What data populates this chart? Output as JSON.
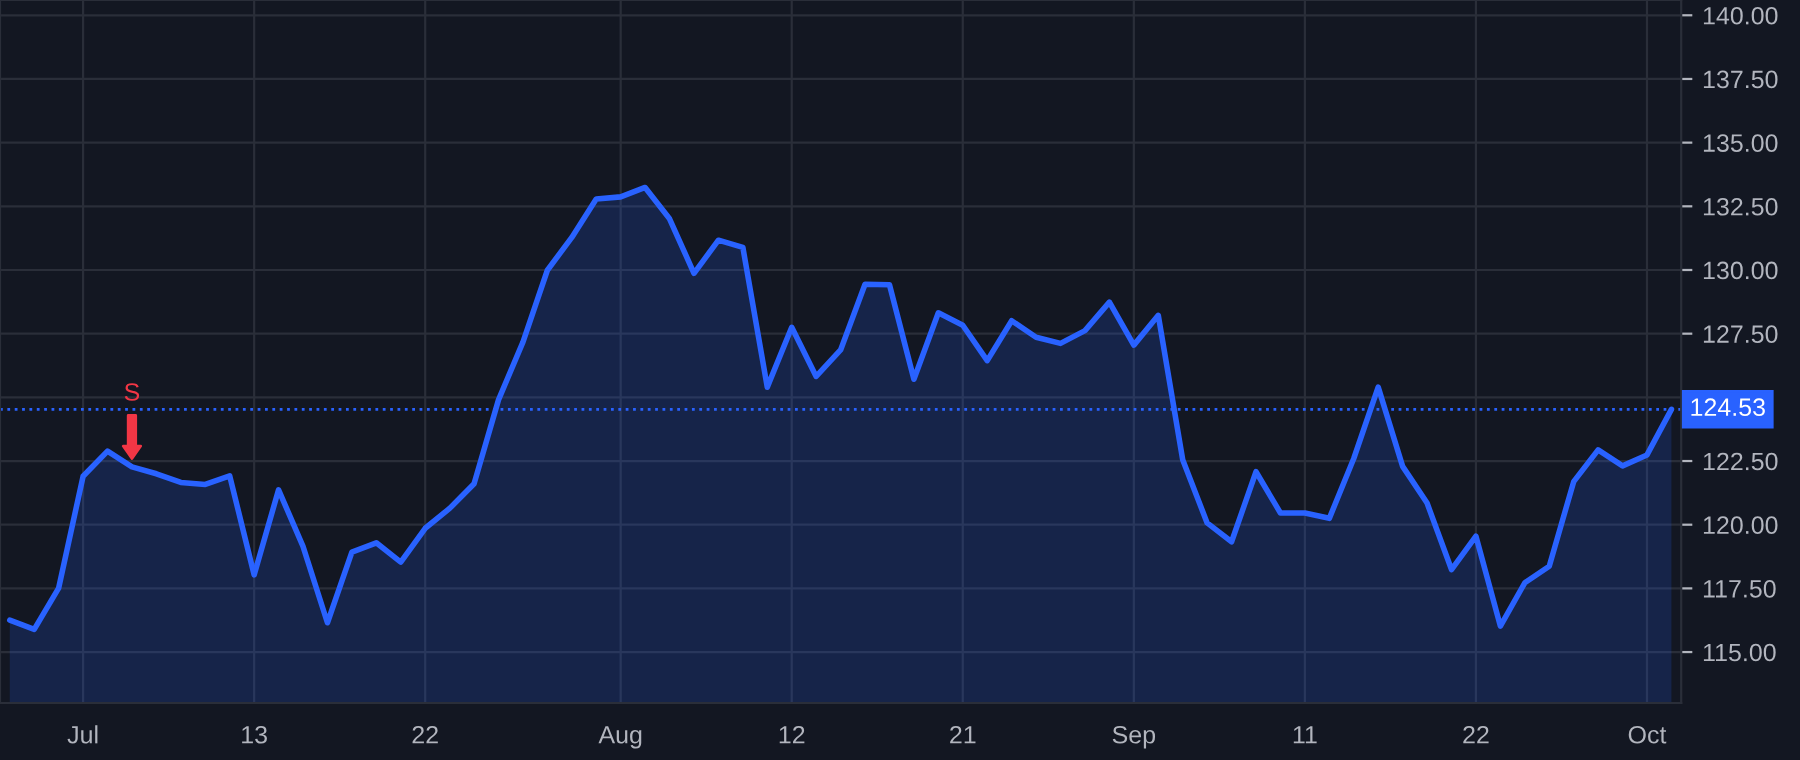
{
  "chart_data": {
    "type": "area",
    "categories": [
      null,
      null,
      null,
      "Jul",
      null,
      null,
      null,
      null,
      null,
      null,
      "13",
      null,
      null,
      null,
      null,
      null,
      null,
      "22",
      null,
      null,
      null,
      null,
      null,
      null,
      null,
      "Aug",
      null,
      null,
      null,
      null,
      null,
      null,
      "12",
      null,
      null,
      null,
      null,
      null,
      null,
      "21",
      null,
      null,
      null,
      null,
      null,
      null,
      "Sep",
      null,
      null,
      null,
      null,
      null,
      null,
      "11",
      null,
      null,
      null,
      null,
      null,
      null,
      "22",
      null,
      null,
      null,
      null,
      null,
      null,
      "Oct",
      null
    ],
    "series": [
      {
        "color": "#2962ff",
        "values": [
          116.25,
          115.89,
          117.51,
          121.9,
          122.89,
          122.27,
          122.0,
          121.66,
          121.58,
          121.92,
          118.03,
          121.37,
          119.15,
          116.15,
          118.92,
          119.29,
          118.53,
          119.86,
          120.64,
          121.61,
          124.9,
          127.17,
          129.99,
          131.28,
          132.79,
          132.87,
          133.24,
          132.01,
          129.87,
          131.17,
          130.89,
          125.4,
          127.75,
          125.82,
          126.86,
          129.44,
          129.42,
          125.71,
          128.32,
          127.83,
          126.44,
          128.01,
          127.36,
          127.12,
          127.62,
          128.74,
          127.05,
          128.22,
          122.55,
          120.07,
          119.33,
          122.08,
          120.46,
          120.46,
          120.25,
          122.6,
          125.4,
          122.29,
          120.85,
          118.24,
          119.55,
          116.02,
          117.72,
          118.37,
          121.69,
          122.94,
          122.31,
          122.74,
          124.53
        ]
      }
    ],
    "ylim": [
      113.0,
      140.6
    ],
    "yticks": [
      {
        "value": 115,
        "label": "115.00"
      },
      {
        "value": 117.5,
        "label": "117.50"
      },
      {
        "value": 120,
        "label": "120.00"
      },
      {
        "value": 122.5,
        "label": "122.50"
      },
      {
        "value": 125,
        "label": null
      },
      {
        "value": 127.5,
        "label": "127.50"
      },
      {
        "value": 130,
        "label": "130.00"
      },
      {
        "value": 132.5,
        "label": "132.50"
      },
      {
        "value": 135,
        "label": "135.00"
      },
      {
        "value": 137.5,
        "label": "137.50"
      },
      {
        "value": 140,
        "label": "140.00"
      }
    ],
    "ref_lines": [
      {
        "axis": "y",
        "value": 124.53,
        "label": "124.53",
        "color": "#2962ff",
        "line_style": "dotted"
      }
    ],
    "annotations": [
      {
        "text": "S",
        "y": 122.27
      }
    ],
    "grid": true
  }
}
